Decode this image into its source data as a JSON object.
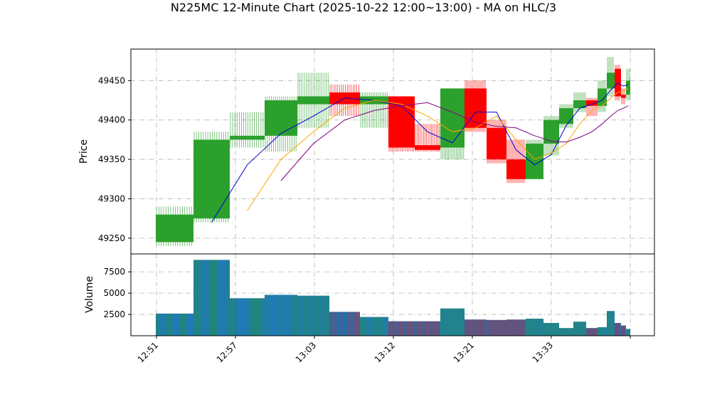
{
  "title": "N225MC 12-Minute Chart (2025-10-22 12:00~13:00) - MA on HLC/3",
  "colors": {
    "up": "#2ca02c",
    "down": "#ff0000",
    "ma_fast": "#0000cd",
    "ma_mid": "#ffa500",
    "ma_slow": "#800080",
    "grid": "#b0b0b0",
    "volume_fill": "#1f77b4"
  },
  "chart_data": [
    {
      "type": "candlestick",
      "ylabel": "Price",
      "ylim": [
        49230,
        49490
      ],
      "yticks": [
        49250,
        49300,
        49350,
        49400,
        49450
      ],
      "grid": true,
      "xtick_labels": [
        "12:51",
        "12:57",
        "13:03",
        "13:12",
        "13:21",
        "13:33"
      ],
      "candles": [
        {
          "open": 49245,
          "close": 49280,
          "high": 49290,
          "low": 49240,
          "dir": "up"
        },
        {
          "open": 49275,
          "close": 49375,
          "high": 49385,
          "low": 49270,
          "dir": "up"
        },
        {
          "open": 49375,
          "close": 49380,
          "high": 49410,
          "low": 49365,
          "dir": "up"
        },
        {
          "open": 49380,
          "close": 49425,
          "high": 49430,
          "low": 49360,
          "dir": "up"
        },
        {
          "open": 49420,
          "close": 49430,
          "high": 49460,
          "low": 49390,
          "dir": "up"
        },
        {
          "open": 49435,
          "close": 49420,
          "high": 49445,
          "low": 49405,
          "dir": "down"
        },
        {
          "open": 49420,
          "close": 49430,
          "high": 49435,
          "low": 49390,
          "dir": "up"
        },
        {
          "open": 49430,
          "close": 49365,
          "high": 49430,
          "low": 49360,
          "dir": "down"
        },
        {
          "open": 49368,
          "close": 49362,
          "high": 49395,
          "low": 49360,
          "dir": "down"
        },
        {
          "open": 49365,
          "close": 49440,
          "high": 49440,
          "low": 49350,
          "dir": "up"
        },
        {
          "open": 49440,
          "close": 49390,
          "high": 49450,
          "low": 49385,
          "dir": "down"
        },
        {
          "open": 49390,
          "close": 49350,
          "high": 49400,
          "low": 49345,
          "dir": "down"
        },
        {
          "open": 49350,
          "close": 49325,
          "high": 49375,
          "low": 49320,
          "dir": "down"
        },
        {
          "open": 49325,
          "close": 49370,
          "high": 49375,
          "low": 49325,
          "dir": "up"
        },
        {
          "open": 49370,
          "close": 49400,
          "high": 49405,
          "low": 49355,
          "dir": "up"
        },
        {
          "open": 49395,
          "close": 49415,
          "high": 49420,
          "low": 49390,
          "dir": "up"
        },
        {
          "open": 49415,
          "close": 49425,
          "high": 49435,
          "low": 49410,
          "dir": "up"
        },
        {
          "open": 49425,
          "close": 49418,
          "high": 49428,
          "low": 49405,
          "dir": "down"
        },
        {
          "open": 49418,
          "close": 49440,
          "high": 49450,
          "low": 49410,
          "dir": "up"
        },
        {
          "open": 49440,
          "close": 49460,
          "high": 49480,
          "low": 49430,
          "dir": "up"
        },
        {
          "open": 49465,
          "close": 49430,
          "high": 49470,
          "low": 49425,
          "dir": "down"
        },
        {
          "open": 49432,
          "close": 49428,
          "high": 49440,
          "low": 49420,
          "dir": "down"
        },
        {
          "open": 49432,
          "close": 49450,
          "high": 49465,
          "low": 49425,
          "dir": "up"
        }
      ],
      "ma_fast": [
        null,
        49270,
        49343,
        49383,
        49405,
        49428,
        49425,
        49418,
        49385,
        49371,
        49410,
        49410,
        49362,
        49343,
        49356,
        49393,
        49415,
        49420,
        49425,
        49438,
        49447,
        49443,
        49445
      ],
      "ma_mid": [
        null,
        null,
        49285,
        49350,
        49385,
        49415,
        49425,
        49420,
        49405,
        49385,
        49390,
        49405,
        49375,
        49350,
        49358,
        49370,
        49395,
        49412,
        49418,
        49428,
        49435,
        49437,
        49440
      ],
      "ma_slow": [
        null,
        null,
        null,
        49323,
        49370,
        49400,
        49412,
        49418,
        49422,
        49410,
        49397,
        49392,
        49390,
        49380,
        49373,
        49372,
        49378,
        49385,
        49395,
        49405,
        49412,
        49415,
        49418
      ]
    },
    {
      "type": "bar",
      "ylabel": "Volume",
      "ylim": [
        0,
        9600
      ],
      "yticks": [
        2500,
        5000,
        7500
      ],
      "grid": true,
      "values": [
        2600,
        8900,
        4400,
        4800,
        4700,
        2800,
        2200,
        1700,
        1700,
        3200,
        1900,
        1850,
        1900,
        2000,
        1500,
        900,
        1650,
        900,
        1000,
        2900,
        1500,
        1200,
        800
      ],
      "dir": [
        "up",
        "up",
        "up",
        "up",
        "up",
        "down",
        "up",
        "down",
        "down",
        "up",
        "down",
        "down",
        "down",
        "up",
        "up",
        "up",
        "up",
        "down",
        "up",
        "up",
        "down",
        "down",
        "up"
      ]
    }
  ]
}
